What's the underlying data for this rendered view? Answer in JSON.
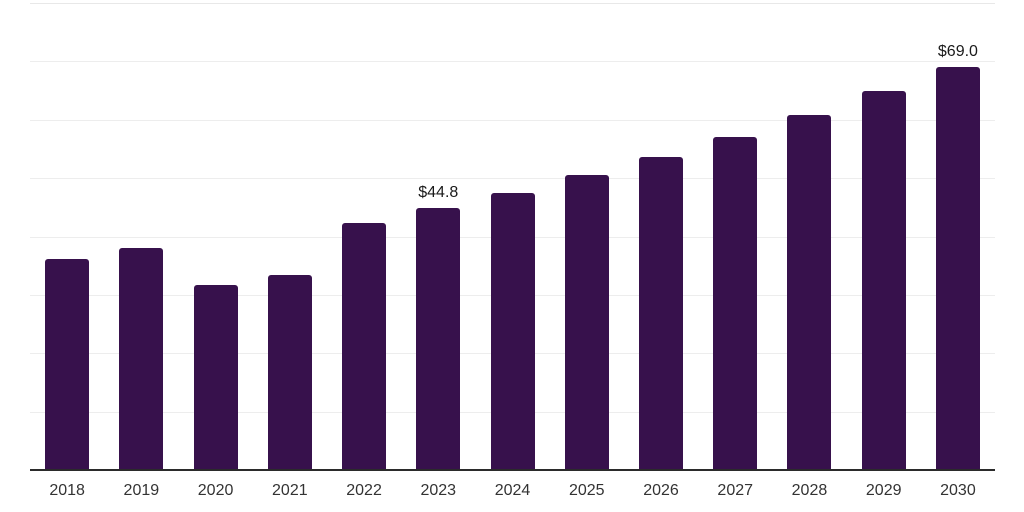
{
  "chart_data": {
    "type": "bar",
    "title": "",
    "categories": [
      "2018",
      "2019",
      "2020",
      "2021",
      "2022",
      "2023",
      "2024",
      "2025",
      "2026",
      "2027",
      "2028",
      "2029",
      "2030"
    ],
    "values": [
      36.2,
      38.1,
      31.7,
      33.4,
      42.3,
      44.8,
      47.5,
      50.5,
      53.6,
      57.1,
      60.8,
      64.9,
      69.0
    ],
    "point_labels": [
      "",
      "",
      "",
      "",
      "",
      "$44.8",
      "",
      "",
      "",
      "",
      "",
      "",
      "$69.0"
    ],
    "xlabel": "",
    "ylabel": "",
    "ylim": [
      0,
      80
    ],
    "grid_step": 10,
    "grid": "horizontal-only",
    "y_axis_labels_visible": false,
    "legend": "none",
    "colors": {
      "bar": "#37114c",
      "gridline": "#ededed",
      "top_gridline": "#e8e8e8",
      "axis_line": "#2b2b2b",
      "value_label": "#1a1a1a",
      "tick_label": "#333333",
      "background": "#ffffff"
    }
  }
}
